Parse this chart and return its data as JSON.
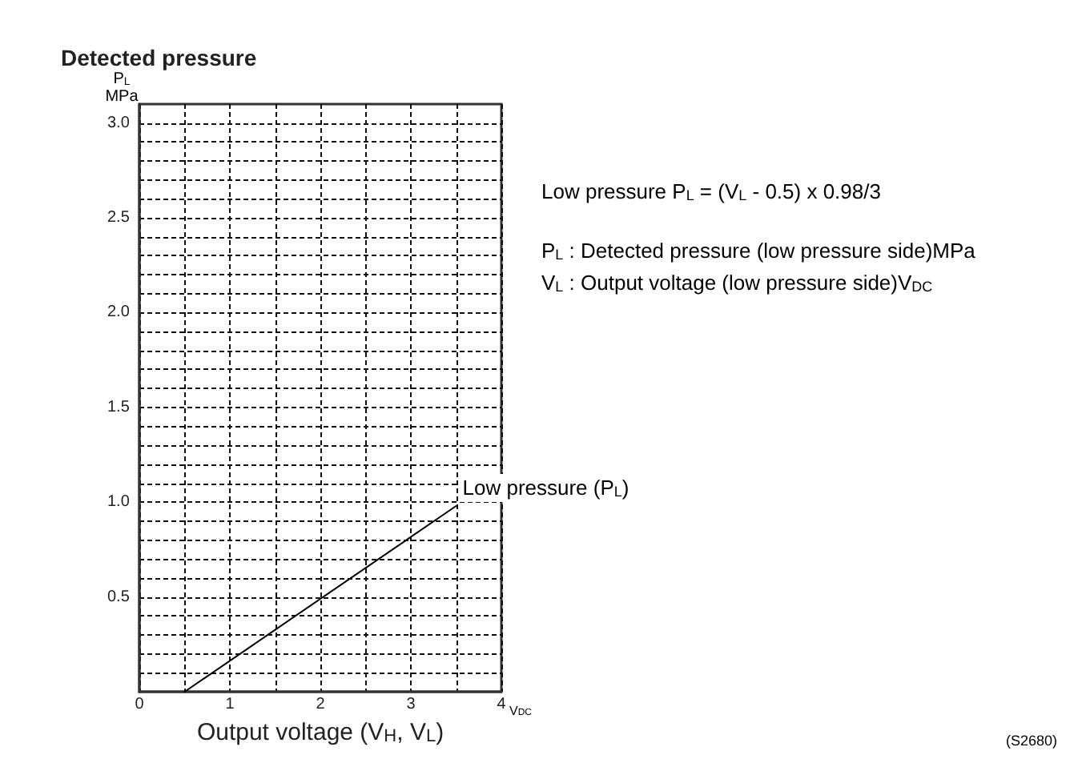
{
  "chart_data": {
    "type": "line",
    "title": "Detected pressure",
    "xlabel": "Output voltage (V$_{H}$, V$_{L}$)",
    "ylabel": "P$_{L}$\nMPa",
    "x": [
      0.5,
      3.5
    ],
    "series": [
      {
        "color": "#000000",
        "values": [
          0,
          0.98
        ]
      }
    ],
    "xlim": [
      0,
      4
    ],
    "ylim": [
      0,
      3.1
    ],
    "xticks": [
      0,
      {
        "value": 0.5,
        "label": null
      },
      1,
      {
        "value": 1.5,
        "label": null
      },
      2,
      {
        "value": 2.5,
        "label": null
      },
      3,
      {
        "value": 3.5,
        "label": null
      },
      4
    ],
    "yticks": [
      {
        "value": 0.1,
        "label": null
      },
      {
        "value": 0.2,
        "label": null
      },
      {
        "value": 0.3,
        "label": null
      },
      {
        "value": 0.4,
        "label": null
      },
      {
        "value": 0.5,
        "label": "0.5"
      },
      {
        "value": 0.6,
        "label": null
      },
      {
        "value": 0.7,
        "label": null
      },
      {
        "value": 0.8,
        "label": null
      },
      {
        "value": 0.9,
        "label": null
      },
      {
        "value": 1,
        "label": "1.0"
      },
      {
        "value": 1.1,
        "label": null
      },
      {
        "value": 1.2,
        "label": null
      },
      {
        "value": 1.3,
        "label": null
      },
      {
        "value": 1.4,
        "label": null
      },
      {
        "value": 1.5,
        "label": "1.5"
      },
      {
        "value": 1.6,
        "label": null
      },
      {
        "value": 1.7,
        "label": null
      },
      {
        "value": 1.8,
        "label": null
      },
      {
        "value": 1.9,
        "label": null
      },
      {
        "value": 2,
        "label": "2.0"
      },
      {
        "value": 2.1,
        "label": null
      },
      {
        "value": 2.2,
        "label": null
      },
      {
        "value": 2.3,
        "label": null
      },
      {
        "value": 2.4,
        "label": null
      },
      {
        "value": 2.5,
        "label": "2.5"
      },
      {
        "value": 2.6,
        "label": null
      },
      {
        "value": 2.7,
        "label": null
      },
      {
        "value": 2.8,
        "label": null
      },
      {
        "value": 2.9,
        "label": null
      },
      {
        "value": 3,
        "label": "3.0"
      }
    ],
    "grid": true,
    "marker": "none",
    "line_style": "solid",
    "annotations": [
      {
        "text": "Low pressure (P$_{L}$)",
        "x": 3.5,
        "y": 0.98
      },
      "V$_{DC}$",
      "Low pressure P$_{L}$ = (V$_{L}$ - 0.5) x 0.98/3",
      "P$_{L}$ : Detected pressure (low pressure side)MPa",
      "V$_{L}$ : Output voltage (low pressure side)V$_{DC}$",
      "(S2680)"
    ]
  }
}
